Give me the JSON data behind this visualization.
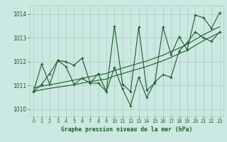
{
  "title": "Graphe pression niveau de la mer (hPa)",
  "bg_color": "#cce8e2",
  "grid_color": "#aaccbb",
  "line_color": "#1a5c2a",
  "xlim": [
    -0.5,
    23.5
  ],
  "ylim": [
    1009.7,
    1014.35
  ],
  "yticks": [
    1010,
    1011,
    1012,
    1013,
    1014
  ],
  "xticks": [
    0,
    1,
    2,
    3,
    4,
    5,
    6,
    7,
    8,
    9,
    10,
    11,
    12,
    13,
    14,
    15,
    16,
    17,
    18,
    19,
    20,
    21,
    22,
    23
  ],
  "trend1": [
    1010.75,
    1010.82,
    1010.88,
    1010.93,
    1010.98,
    1011.03,
    1011.1,
    1011.16,
    1011.22,
    1011.27,
    1011.4,
    1011.5,
    1011.6,
    1011.7,
    1011.8,
    1011.92,
    1012.04,
    1012.18,
    1012.33,
    1012.48,
    1012.68,
    1012.88,
    1013.05,
    1013.22
  ],
  "trend2": [
    1010.9,
    1010.97,
    1011.03,
    1011.09,
    1011.16,
    1011.22,
    1011.3,
    1011.37,
    1011.44,
    1011.5,
    1011.63,
    1011.73,
    1011.83,
    1011.93,
    1012.03,
    1012.15,
    1012.27,
    1012.42,
    1012.57,
    1012.73,
    1012.93,
    1013.13,
    1013.3,
    1013.47
  ],
  "zigzag1": [
    1010.75,
    1011.9,
    1011.05,
    1012.05,
    1012.0,
    1011.85,
    1012.15,
    1011.1,
    1011.5,
    1010.75,
    1013.5,
    1011.05,
    1010.75,
    1013.45,
    1010.8,
    1011.1,
    1013.45,
    1012.3,
    1013.05,
    1012.5,
    1013.95,
    1013.85,
    1013.4,
    1014.05
  ],
  "zigzag2": [
    1010.75,
    1011.05,
    1011.5,
    1012.05,
    1011.8,
    1011.05,
    1011.3,
    1011.1,
    1011.1,
    1010.75,
    1011.75,
    1010.85,
    1010.15,
    1011.35,
    1010.5,
    1011.15,
    1011.45,
    1011.35,
    1012.45,
    1012.8,
    1013.25,
    1013.0,
    1012.85,
    1013.25
  ]
}
